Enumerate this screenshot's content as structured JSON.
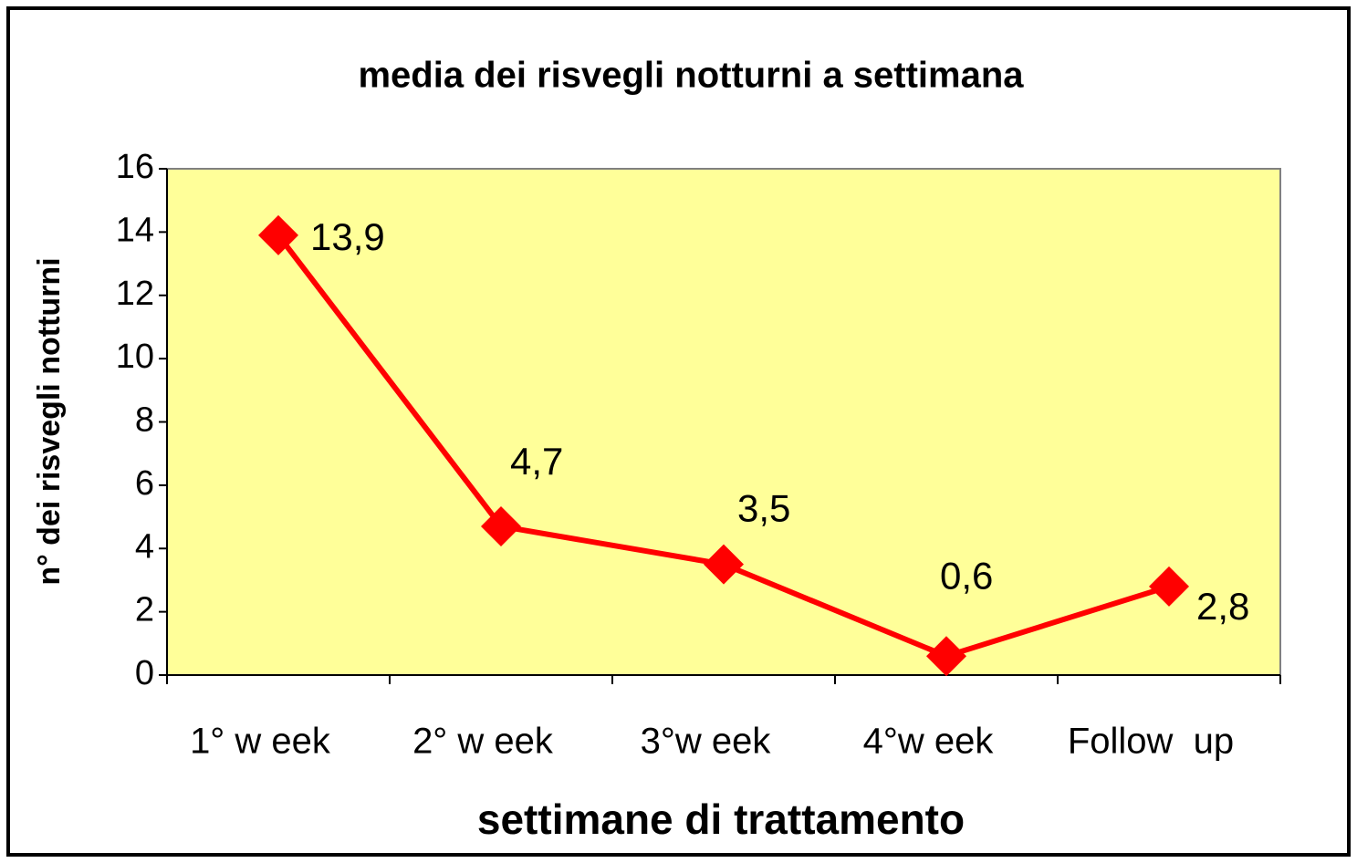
{
  "chart_data": {
    "type": "line",
    "title": "media dei risvegli notturni a settimana",
    "x_label": "settimane di trattamento",
    "y_label": "n° dei risvegli notturni",
    "categories": [
      "1° w eek",
      "2° w eek",
      "3°w eek",
      "4°w eek",
      "Follow  up"
    ],
    "series": [
      {
        "name": "media dei risvegli notturni",
        "color": "#ff0000",
        "values": [
          13.9,
          4.7,
          3.5,
          0.6,
          2.8
        ],
        "value_labels": [
          "13,9",
          "4,7",
          "3,5",
          "0,6",
          "2,8"
        ]
      }
    ],
    "ylim": [
      0,
      16
    ],
    "yticks": [
      0,
      2,
      4,
      6,
      8,
      10,
      12,
      14,
      16
    ],
    "plot_background": "#ffff99"
  }
}
